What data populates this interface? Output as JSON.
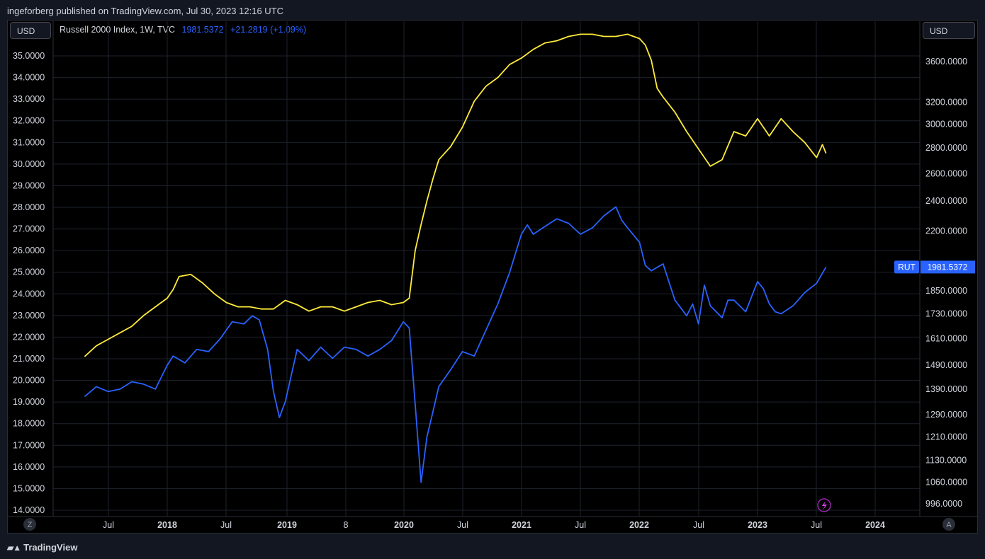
{
  "header": {
    "published": "ingeforberg published on TradingView.com, Jul 30, 2023 12:16 UTC"
  },
  "left_currency": "USD",
  "right_currency": "USD",
  "legend": {
    "symbol": "Russell 2000 Index, 1W, TVC",
    "value": "1981.5372",
    "change": "+21.2819 (+1.09%)"
  },
  "price_tag": {
    "label": "RUT",
    "value": "1981.5372"
  },
  "footer": {
    "brand": "TradingView"
  },
  "buttons": {
    "zoom": "Z",
    "auto": "A"
  },
  "colors": {
    "rut": "#2962ff",
    "compare": "#ffeb3b",
    "tag": "#2962ff"
  },
  "chart_data": {
    "type": "line",
    "x_ticks": [
      "Jul",
      "2018",
      "Jul",
      "2019",
      "8",
      "2020",
      "Jul",
      "2021",
      "Jul",
      "2022",
      "Jul",
      "2023",
      "Jul",
      "2024"
    ],
    "left_axis_ticks": [
      "35.0000",
      "34.0000",
      "33.0000",
      "32.0000",
      "31.0000",
      "30.0000",
      "29.0000",
      "28.0000",
      "27.0000",
      "26.0000",
      "25.0000",
      "24.0000",
      "23.0000",
      "22.0000",
      "21.0000",
      "20.0000",
      "19.0000",
      "18.0000",
      "17.0000",
      "16.0000",
      "15.0000",
      "14.0000"
    ],
    "right_axis_ticks": [
      "3600.0000",
      "3200.0000",
      "3000.0000",
      "2800.0000",
      "2600.0000",
      "2400.0000",
      "2200.0000",
      "1850.0000",
      "1730.0000",
      "1610.0000",
      "1490.0000",
      "1390.0000",
      "1290.0000",
      "1210.0000",
      "1130.0000",
      "1060.0000",
      "996.0000"
    ],
    "right_scale": "log",
    "series": [
      {
        "name": "Russell 2000 Index",
        "axis": "right",
        "x": [
          2017.3,
          2017.4,
          2017.5,
          2017.6,
          2017.7,
          2017.8,
          2017.9,
          2018.0,
          2018.05,
          2018.15,
          2018.25,
          2018.35,
          2018.45,
          2018.55,
          2018.65,
          2018.72,
          2018.78,
          2018.85,
          2018.9,
          2018.95,
          2019.0,
          2019.1,
          2019.2,
          2019.3,
          2019.4,
          2019.5,
          2019.6,
          2019.7,
          2019.8,
          2019.9,
          2020.0,
          2020.05,
          2020.1,
          2020.15,
          2020.2,
          2020.25,
          2020.3,
          2020.4,
          2020.5,
          2020.6,
          2020.7,
          2020.8,
          2020.9,
          2021.0,
          2021.05,
          2021.1,
          2021.2,
          2021.3,
          2021.4,
          2021.5,
          2021.6,
          2021.7,
          2021.8,
          2021.85,
          2021.9,
          2022.0,
          2022.05,
          2022.1,
          2022.2,
          2022.3,
          2022.4,
          2022.45,
          2022.5,
          2022.55,
          2022.6,
          2022.7,
          2022.75,
          2022.8,
          2022.9,
          2023.0,
          2023.05,
          2023.1,
          2023.15,
          2023.2,
          2023.3,
          2023.4,
          2023.5,
          2023.58
        ],
        "values": [
          1360,
          1400,
          1380,
          1390,
          1420,
          1410,
          1390,
          1490,
          1530,
          1500,
          1560,
          1550,
          1610,
          1690,
          1680,
          1720,
          1700,
          1560,
          1380,
          1280,
          1340,
          1560,
          1510,
          1570,
          1520,
          1570,
          1560,
          1530,
          1560,
          1600,
          1690,
          1660,
          1330,
          1060,
          1210,
          1300,
          1400,
          1470,
          1550,
          1530,
          1650,
          1780,
          1950,
          2180,
          2240,
          2180,
          2230,
          2280,
          2250,
          2180,
          2220,
          2300,
          2360,
          2270,
          2220,
          2130,
          1990,
          1960,
          2000,
          1800,
          1720,
          1780,
          1680,
          1880,
          1770,
          1710,
          1800,
          1800,
          1740,
          1900,
          1860,
          1780,
          1740,
          1730,
          1770,
          1840,
          1890,
          1981.5372
        ]
      },
      {
        "name": "",
        "axis": "left",
        "x": [
          2017.3,
          2017.4,
          2017.5,
          2017.6,
          2017.7,
          2017.8,
          2017.9,
          2018.0,
          2018.05,
          2018.1,
          2018.2,
          2018.3,
          2018.4,
          2018.5,
          2018.6,
          2018.7,
          2018.8,
          2018.9,
          2019.0,
          2019.1,
          2019.2,
          2019.3,
          2019.4,
          2019.5,
          2019.6,
          2019.7,
          2019.8,
          2019.9,
          2020.0,
          2020.05,
          2020.1,
          2020.15,
          2020.2,
          2020.25,
          2020.3,
          2020.4,
          2020.5,
          2020.6,
          2020.7,
          2020.8,
          2020.9,
          2021.0,
          2021.1,
          2021.2,
          2021.3,
          2021.4,
          2021.5,
          2021.6,
          2021.7,
          2021.8,
          2021.9,
          2022.0,
          2022.05,
          2022.1,
          2022.15,
          2022.2,
          2022.3,
          2022.4,
          2022.5,
          2022.6,
          2022.7,
          2022.8,
          2022.9,
          2023.0,
          2023.1,
          2023.2,
          2023.3,
          2023.4,
          2023.5,
          2023.55,
          2023.58
        ],
        "values": [
          21.1,
          21.6,
          21.9,
          22.2,
          22.5,
          23.0,
          23.4,
          23.8,
          24.2,
          24.8,
          24.9,
          24.5,
          24.0,
          23.6,
          23.4,
          23.4,
          23.3,
          23.3,
          23.7,
          23.5,
          23.2,
          23.4,
          23.4,
          23.2,
          23.4,
          23.6,
          23.7,
          23.5,
          23.6,
          23.8,
          26.0,
          27.2,
          28.3,
          29.3,
          30.2,
          30.8,
          31.7,
          32.9,
          33.6,
          34.0,
          34.6,
          34.9,
          35.3,
          35.6,
          35.7,
          35.9,
          36.0,
          36.0,
          35.9,
          35.9,
          36.0,
          35.8,
          35.5,
          34.8,
          33.5,
          33.1,
          32.4,
          31.5,
          30.7,
          29.9,
          30.2,
          31.5,
          31.3,
          32.1,
          31.3,
          32.1,
          31.5,
          31.0,
          30.3,
          30.9,
          30.5
        ]
      }
    ],
    "grid": true,
    "legend": "top-left"
  }
}
